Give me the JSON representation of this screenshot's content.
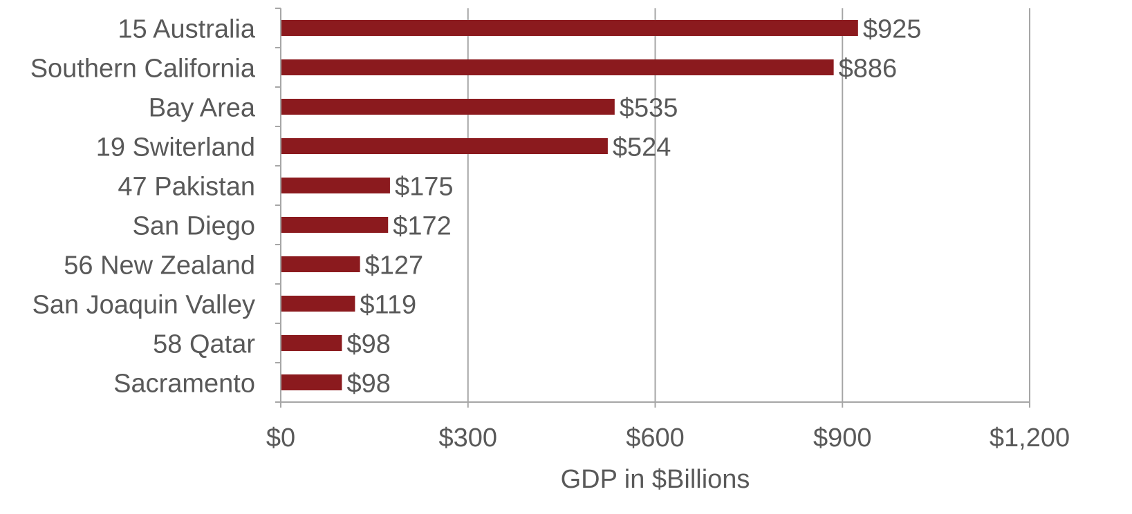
{
  "chart_data": {
    "type": "bar",
    "orientation": "horizontal",
    "categories": [
      "15 Australia",
      "Southern California",
      "Bay Area",
      "19 Switerland",
      "47 Pakistan",
      "San Diego",
      "56 New Zealand",
      "San Joaquin Valley ",
      "58 Qatar",
      "Sacramento "
    ],
    "values": [
      925,
      886,
      535,
      524,
      175,
      172,
      127,
      119,
      98,
      98
    ],
    "value_labels": [
      "$925",
      "$886",
      "$535",
      "$524",
      "$175",
      "$172",
      "$127",
      "$119",
      "$98",
      "$98"
    ],
    "title": "",
    "xlabel": "GDP in $Billions",
    "ylabel": "",
    "xlim": [
      0,
      1200
    ],
    "xticks": [
      0,
      300,
      600,
      900,
      1200
    ],
    "xtick_labels": [
      "$0",
      "$300",
      "$600",
      "$900",
      "$1,200"
    ],
    "grid": "vertical",
    "legend": "none",
    "bar_color": "#8b1a1e",
    "text_color": "#595959",
    "grid_color": "#a6a6a6"
  }
}
